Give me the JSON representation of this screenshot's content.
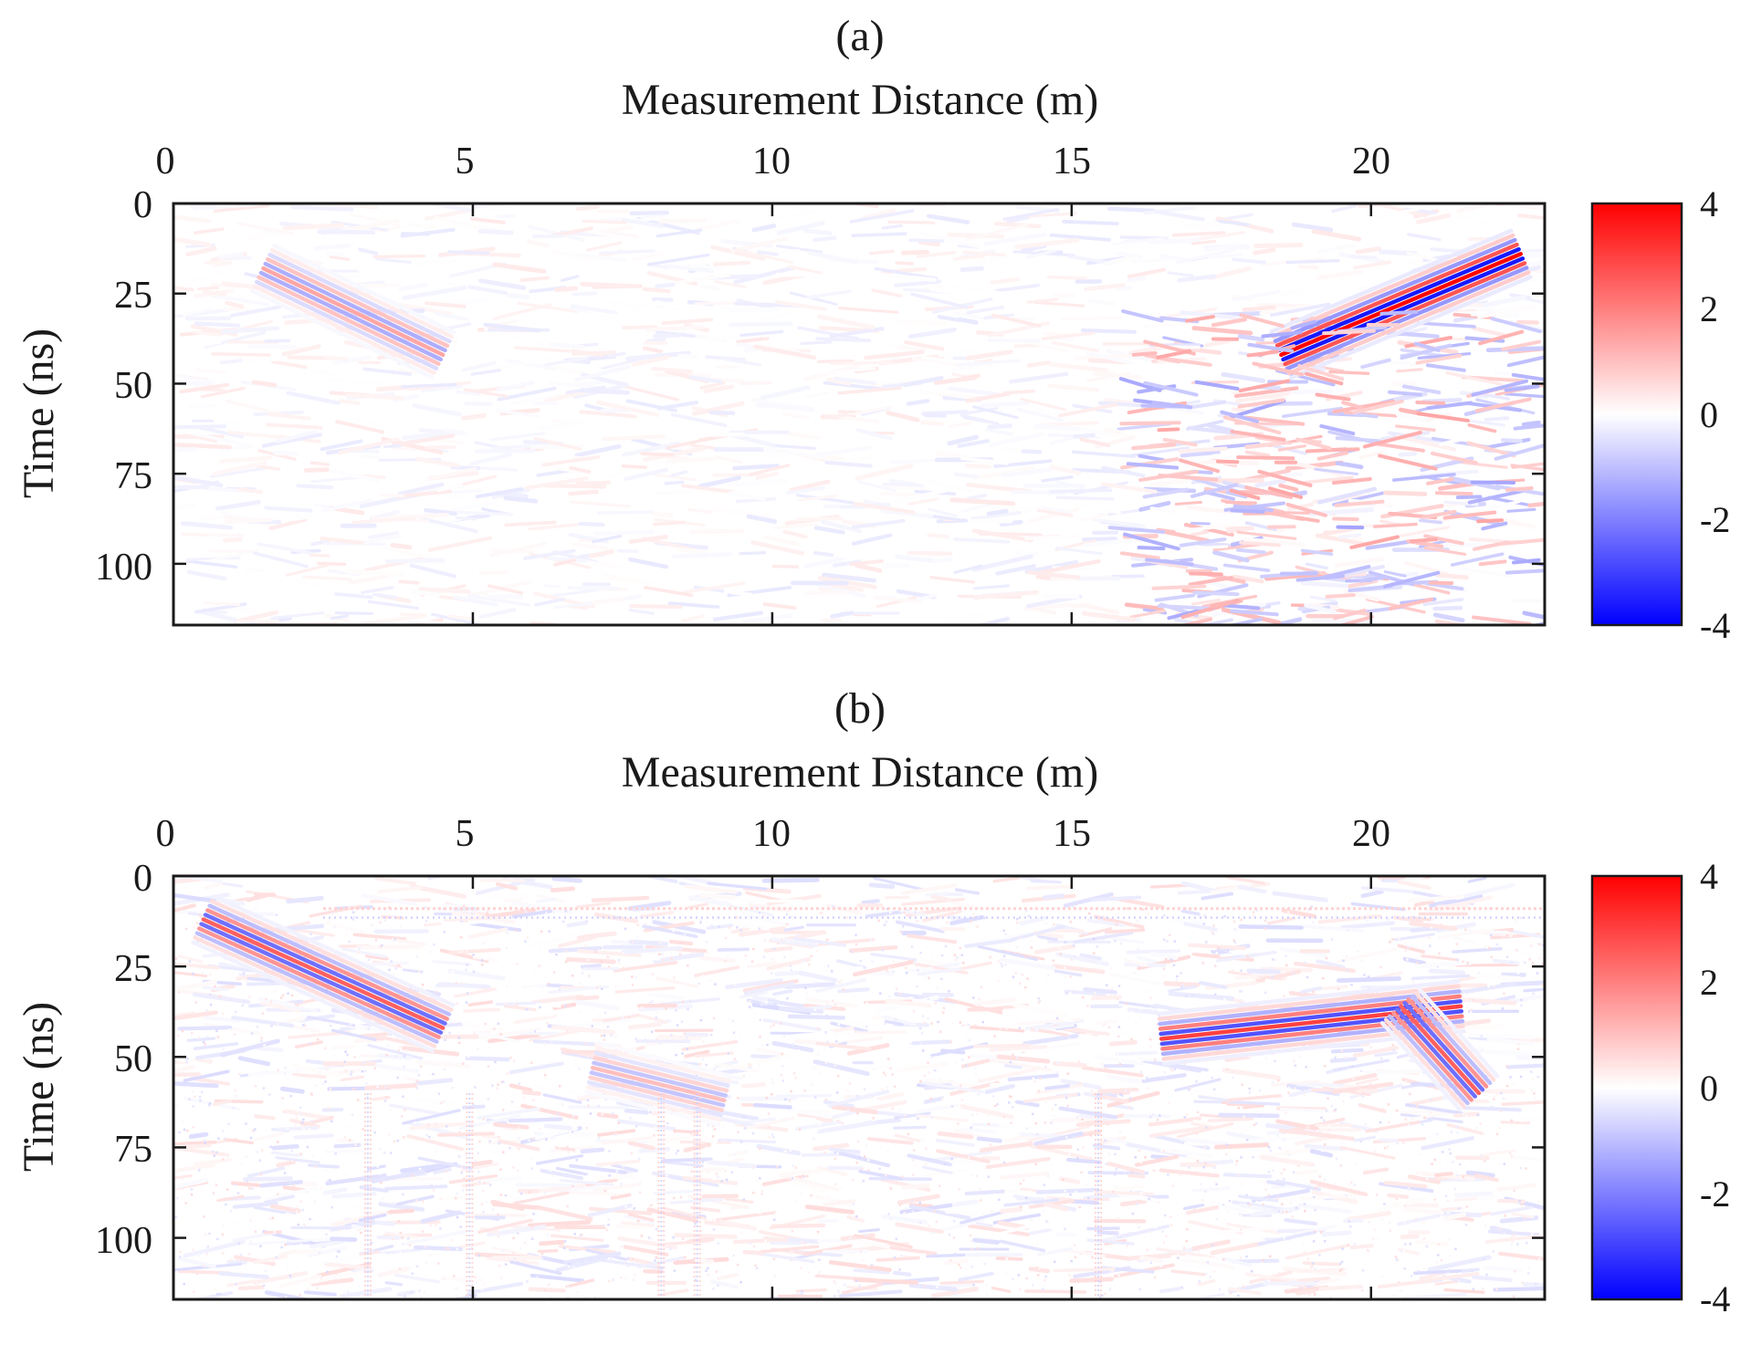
{
  "chart_data": [
    {
      "type": "heatmap",
      "title": "(a)",
      "xlabel": "Measurement Distance (m)",
      "ylabel": "Time (ns)",
      "xlim": [
        0,
        22.9
      ],
      "ylim": [
        0,
        117
      ],
      "x_axis_position": "top",
      "y_axis_reversed": true,
      "x_ticks": [
        "0",
        "5",
        "10",
        "15",
        "20"
      ],
      "y_ticks": [
        "0",
        "25",
        "50",
        "75",
        "100"
      ],
      "colorbar": {
        "range": [
          -4,
          4
        ],
        "ticks": [
          "4",
          "2",
          "0",
          "-2",
          "-4"
        ],
        "colormap": [
          "#0000ff",
          "#ffffff",
          "#ff0000"
        ]
      },
      "features": [
        {
          "kind": "dipping reflection",
          "x_start": 1.5,
          "t_start": 18,
          "x_end": 4.5,
          "t_end": 42,
          "amplitude": 1.4
        },
        {
          "kind": "strong dipping reflection",
          "x_start": 18.5,
          "t_start": 42,
          "x_end": 22.5,
          "t_end": 14,
          "amplitude": 4.0
        },
        {
          "kind": "diffuse scattering",
          "x_range": [
            16,
            22.9
          ],
          "t_range": [
            30,
            117
          ],
          "amplitude": 1.3
        }
      ]
    },
    {
      "type": "heatmap",
      "title": "(b)",
      "xlabel": "Measurement Distance (m)",
      "ylabel": "Time (ns)",
      "xlim": [
        0,
        22.9
      ],
      "ylim": [
        0,
        117
      ],
      "x_axis_position": "top",
      "y_axis_reversed": true,
      "x_ticks": [
        "0",
        "5",
        "10",
        "15",
        "20"
      ],
      "y_ticks": [
        "0",
        "25",
        "50",
        "75",
        "100"
      ],
      "colorbar": {
        "range": [
          -4,
          4
        ],
        "ticks": [
          "4",
          "2",
          "0",
          "-2",
          "-4"
        ],
        "colormap": [
          "#0000ff",
          "#ffffff",
          "#ff0000"
        ]
      },
      "features": [
        {
          "kind": "dipping reflection",
          "x_start": 0.5,
          "t_start": 12,
          "x_end": 4.5,
          "t_end": 42,
          "amplitude": 2.5
        },
        {
          "kind": "dipping reflection",
          "x_start": 7.0,
          "t_start": 53,
          "x_end": 9.2,
          "t_end": 62,
          "amplitude": 1.0
        },
        {
          "kind": "hyperbola-like reflection",
          "x_start": 16.5,
          "t_start": 45,
          "x_end": 21.5,
          "t_end": 36,
          "amplitude": 3.0
        },
        {
          "kind": "dipping reflection",
          "x_start": 20.5,
          "t_start": 36,
          "x_end": 21.8,
          "t_end": 60,
          "amplitude": 2.5
        },
        {
          "kind": "horizontal band",
          "t": 9,
          "x_range": [
            2.5,
            22.9
          ],
          "amplitude": 0.7
        },
        {
          "kind": "vertical noise streaks",
          "x": [
            3.2,
            4.9,
            8.1,
            8.7,
            15.4
          ],
          "t_range": [
            60,
            117
          ],
          "amplitude": 0.8
        }
      ]
    }
  ]
}
